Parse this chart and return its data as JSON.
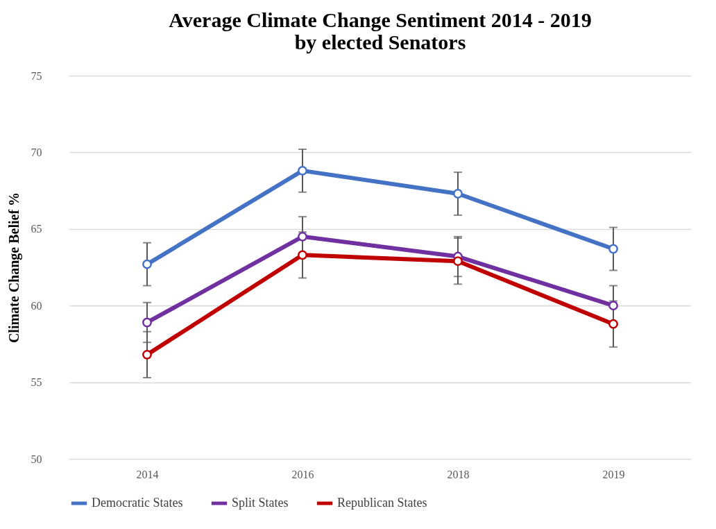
{
  "chart_data": {
    "type": "line",
    "title": "Average Climate Change Sentiment 2014 - 2019\nby elected Senators",
    "ylabel": "Climate Change Belief %",
    "categories": [
      "2014",
      "2016",
      "2018",
      "2019"
    ],
    "series": [
      {
        "name": "Democratic States",
        "color": "#4472c4",
        "values": [
          62.7,
          68.8,
          67.3,
          63.7
        ],
        "errors": [
          1.4,
          1.4,
          1.4,
          1.4
        ]
      },
      {
        "name": "Split States",
        "color": "#7030a0",
        "values": [
          58.9,
          64.5,
          63.2,
          60.0
        ],
        "errors": [
          1.3,
          1.3,
          1.3,
          1.3
        ]
      },
      {
        "name": "Republican States",
        "color": "#c00000",
        "values": [
          56.8,
          63.3,
          62.9,
          58.8
        ],
        "errors": [
          1.5,
          1.5,
          1.5,
          1.5
        ]
      }
    ],
    "ylim": [
      50,
      75
    ],
    "yticks": [
      50,
      55,
      60,
      65,
      70,
      75
    ],
    "grid": "y",
    "legend": "bottom",
    "marker": "circle",
    "line_style": "solid"
  }
}
